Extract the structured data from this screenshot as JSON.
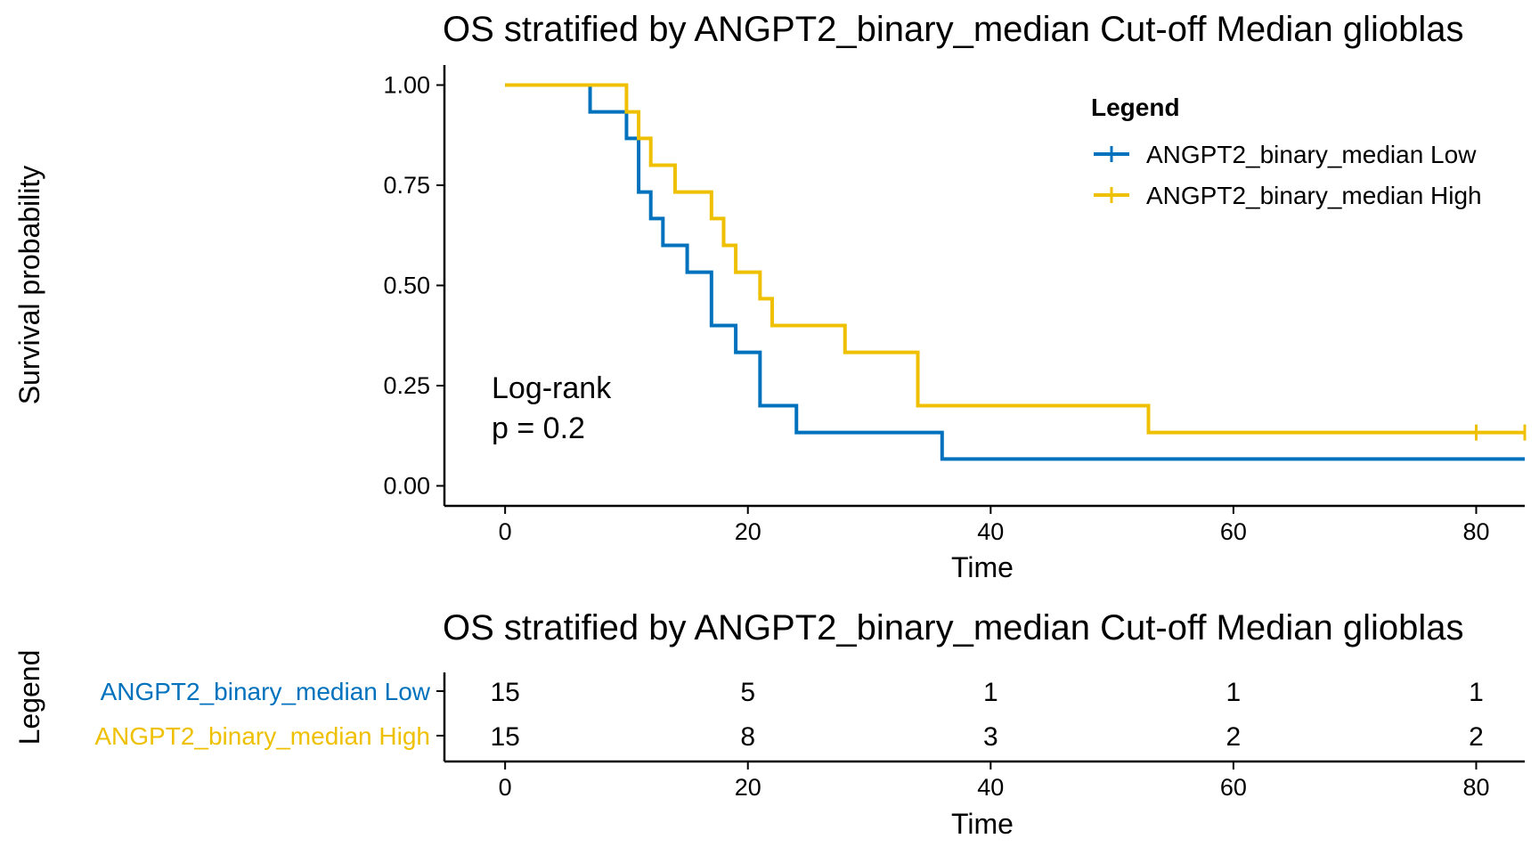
{
  "chart_data": [
    {
      "type": "line",
      "subtype": "kaplan-meier step",
      "title": "OS stratified by ANGPT2_binary_median Cut-off Median glioblas",
      "xlabel": "Time",
      "ylabel": "Survival probability",
      "xlim": [
        -5,
        84
      ],
      "ylim": [
        -0.05,
        1.05
      ],
      "x_ticks": [
        "0",
        "20",
        "40",
        "60",
        "80"
      ],
      "x_tick_values": [
        0,
        20,
        40,
        60,
        80
      ],
      "y_ticks": [
        "0.00",
        "0.25",
        "0.50",
        "0.75",
        "1.00"
      ],
      "y_tick_values": [
        0,
        0.25,
        0.5,
        0.75,
        1.0
      ],
      "grid": false,
      "legend": {
        "title": "Legend",
        "position": "top-right",
        "entries": [
          "ANGPT2_binary_median Low",
          "ANGPT2_binary_median High"
        ]
      },
      "annotation": {
        "line1": "Log-rank",
        "line2": "p = 0.2"
      },
      "series": [
        {
          "name": "ANGPT2_binary_median Low",
          "color": "#0072BD",
          "x": [
            0,
            7,
            10,
            11,
            12,
            13,
            15,
            17,
            19,
            21,
            24,
            36,
            84
          ],
          "y": [
            1.0,
            0.933,
            0.867,
            0.733,
            0.667,
            0.6,
            0.533,
            0.4,
            0.333,
            0.2,
            0.133,
            0.067,
            0.067
          ],
          "censored_x": []
        },
        {
          "name": "ANGPT2_binary_median High",
          "color": "#EFC000",
          "x": [
            0,
            10,
            11,
            12,
            14,
            17,
            18,
            19,
            21,
            22,
            28,
            34,
            53,
            84
          ],
          "y": [
            1.0,
            0.933,
            0.867,
            0.8,
            0.733,
            0.667,
            0.6,
            0.533,
            0.467,
            0.4,
            0.333,
            0.2,
            0.133,
            0.133
          ],
          "censored_x": [
            80,
            84
          ]
        }
      ]
    },
    {
      "type": "table",
      "title": "OS stratified by ANGPT2_binary_median Cut-off Median glioblas",
      "xlabel": "Time",
      "ylabel": "Legend",
      "x_ticks": [
        "0",
        "20",
        "40",
        "60",
        "80"
      ],
      "x_tick_values": [
        0,
        20,
        40,
        60,
        80
      ],
      "rows": [
        {
          "name": "ANGPT2_binary_median Low",
          "color": "#0072BD",
          "values": [
            "15",
            "5",
            "1",
            "1",
            "1"
          ]
        },
        {
          "name": "ANGPT2_binary_median High",
          "color": "#EFC000",
          "values": [
            "15",
            "8",
            "3",
            "2",
            "2"
          ]
        }
      ]
    }
  ]
}
